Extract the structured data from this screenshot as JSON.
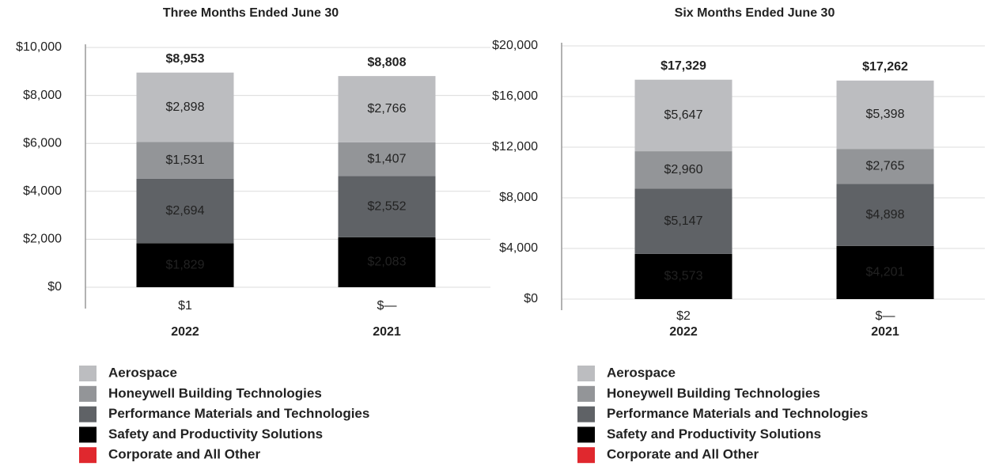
{
  "chart_data": [
    {
      "type": "bar",
      "stacked": true,
      "title": "Three Months Ended June 30",
      "categories": [
        "2022",
        "2021"
      ],
      "series": [
        {
          "name": "Aerospace",
          "color": "#bcbdc0",
          "values": [
            2898,
            2766
          ],
          "value_labels": [
            "$2,898",
            "$2,766"
          ]
        },
        {
          "name": "Honeywell Building Technologies",
          "color": "#939598",
          "values": [
            1531,
            1407
          ],
          "value_labels": [
            "$1,531",
            "$1,407"
          ]
        },
        {
          "name": "Performance Materials and Technologies",
          "color": "#5f6266",
          "values": [
            2694,
            2552
          ],
          "value_labels": [
            "$2,694",
            "$2,552"
          ]
        },
        {
          "name": "Safety and Productivity Solutions",
          "color": "#000000",
          "values": [
            1829,
            2083
          ],
          "value_labels": [
            "$1,829",
            "$2,083"
          ]
        },
        {
          "name": "Corporate and All Other",
          "color": "#e0282e",
          "values": [
            1,
            0
          ],
          "value_labels": [
            "$1",
            "$—"
          ]
        }
      ],
      "totals": {
        "values": [
          8953,
          8808
        ],
        "value_labels": [
          "$8,953",
          "$8,808"
        ]
      },
      "ylim": [
        0,
        10000
      ],
      "yticks": [
        {
          "value": 0,
          "label": "$0"
        },
        {
          "value": 2000,
          "label": "$2,000"
        },
        {
          "value": 4000,
          "label": "$4,000"
        },
        {
          "value": 6000,
          "label": "$6,000"
        },
        {
          "value": 8000,
          "label": "$8,000"
        },
        {
          "value": 10000,
          "label": "$10,000"
        }
      ],
      "grid": true
    },
    {
      "type": "bar",
      "stacked": true,
      "title": "Six Months Ended June 30",
      "categories": [
        "2022",
        "2021"
      ],
      "series": [
        {
          "name": "Aerospace",
          "color": "#bcbdc0",
          "values": [
            5647,
            5398
          ],
          "value_labels": [
            "$5,647",
            "$5,398"
          ]
        },
        {
          "name": "Honeywell Building Technologies",
          "color": "#939598",
          "values": [
            2960,
            2765
          ],
          "value_labels": [
            "$2,960",
            "$2,765"
          ]
        },
        {
          "name": "Performance Materials and Technologies",
          "color": "#5f6266",
          "values": [
            5147,
            4898
          ],
          "value_labels": [
            "$5,147",
            "$4,898"
          ]
        },
        {
          "name": "Safety and Productivity Solutions",
          "color": "#000000",
          "values": [
            3573,
            4201
          ],
          "value_labels": [
            "$3,573",
            "$4,201"
          ]
        },
        {
          "name": "Corporate and All Other",
          "color": "#e0282e",
          "values": [
            2,
            0
          ],
          "value_labels": [
            "$2",
            "$—"
          ]
        }
      ],
      "totals": {
        "values": [
          17329,
          17262
        ],
        "value_labels": [
          "$17,329",
          "$17,262"
        ]
      },
      "ylim": [
        0,
        20000
      ],
      "yticks": [
        {
          "value": 0,
          "label": "$0"
        },
        {
          "value": 4000,
          "label": "$4,000"
        },
        {
          "value": 8000,
          "label": "$8,000"
        },
        {
          "value": 12000,
          "label": "$12,000"
        },
        {
          "value": 16000,
          "label": "$16,000"
        },
        {
          "value": 20000,
          "label": "$20,000"
        }
      ],
      "grid": true
    }
  ]
}
